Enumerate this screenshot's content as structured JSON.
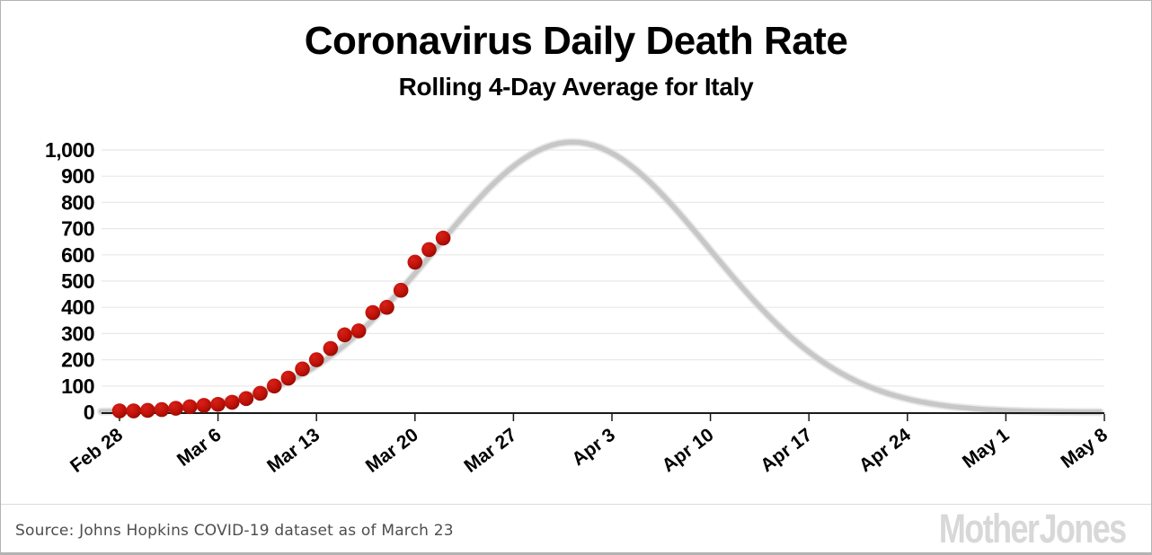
{
  "header": {
    "title": "Coronavirus Daily Death Rate",
    "subtitle": "Rolling 4-Day Average for Italy"
  },
  "footer": {
    "source": "Source: Johns Hopkins COVID-19 dataset as of March 23",
    "logo": "Mother Jones"
  },
  "colors": {
    "dot_red_center": "#d7201a",
    "dot_red_mid": "#c11208",
    "dot_red_edge": "#8c0a04",
    "curve_gray": "#c7c7c7",
    "curve_gray_soft": "#dadada",
    "grid_gray": "#e8e8e8",
    "axis_black": "#1a1a1a",
    "label_black": "#000000"
  },
  "chart_data": {
    "type": "scatter",
    "title": "Coronavirus Daily Death Rate",
    "subtitle": "Rolling 4-Day Average for Italy",
    "xlabel": "",
    "ylabel": "",
    "ylim": [
      0,
      1000
    ],
    "grid": "horizontal",
    "legend": "none",
    "y_tick_values": [
      0,
      100,
      200,
      300,
      400,
      500,
      600,
      700,
      800,
      900,
      1000
    ],
    "y_tick_labels": [
      "0",
      "100",
      "200",
      "300",
      "400",
      "500",
      "600",
      "700",
      "800",
      "900",
      "1,000"
    ],
    "x_tick_labels": [
      "Feb 28",
      "Mar 6",
      "Mar 13",
      "Mar 20",
      "Mar 27",
      "Apr 3",
      "Apr 10",
      "Apr 17",
      "Apr 24",
      "May 1",
      "May 8"
    ],
    "x_tick_rotation_deg": -37,
    "days_per_tick": 7,
    "total_days": 70,
    "actual_series": {
      "name": "Italy daily deaths, rolling 4-day average",
      "marker": "circle",
      "dates": [
        "Feb 28",
        "Feb 29",
        "Mar 1",
        "Mar 2",
        "Mar 3",
        "Mar 4",
        "Mar 5",
        "Mar 6",
        "Mar 7",
        "Mar 8",
        "Mar 9",
        "Mar 10",
        "Mar 11",
        "Mar 12",
        "Mar 13",
        "Mar 14",
        "Mar 15",
        "Mar 16",
        "Mar 17",
        "Mar 18",
        "Mar 19",
        "Mar 20",
        "Mar 21",
        "Mar 22"
      ],
      "values": [
        5,
        5,
        7,
        10,
        15,
        21,
        26,
        30,
        38,
        52,
        72,
        100,
        130,
        165,
        200,
        243,
        295,
        310,
        380,
        400,
        465,
        572,
        620,
        664
      ]
    },
    "projection_series": {
      "name": "Projected bell curve",
      "model": "gaussian",
      "peak_value": 1030,
      "peak_date": "Mar 31",
      "peak_day_index": 32.2,
      "sigma_days": 9.7,
      "weekly_reference_values": {
        "Feb 28": 4,
        "Mar 6": 35,
        "Mar 13": 180,
        "Mar 20": 527,
        "Mar 27": 940,
        "Apr 3": 988,
        "Apr 10": 616,
        "Apr 17": 229,
        "Apr 24": 50,
        "May 1": 6,
        "May 8": 1
      }
    }
  }
}
